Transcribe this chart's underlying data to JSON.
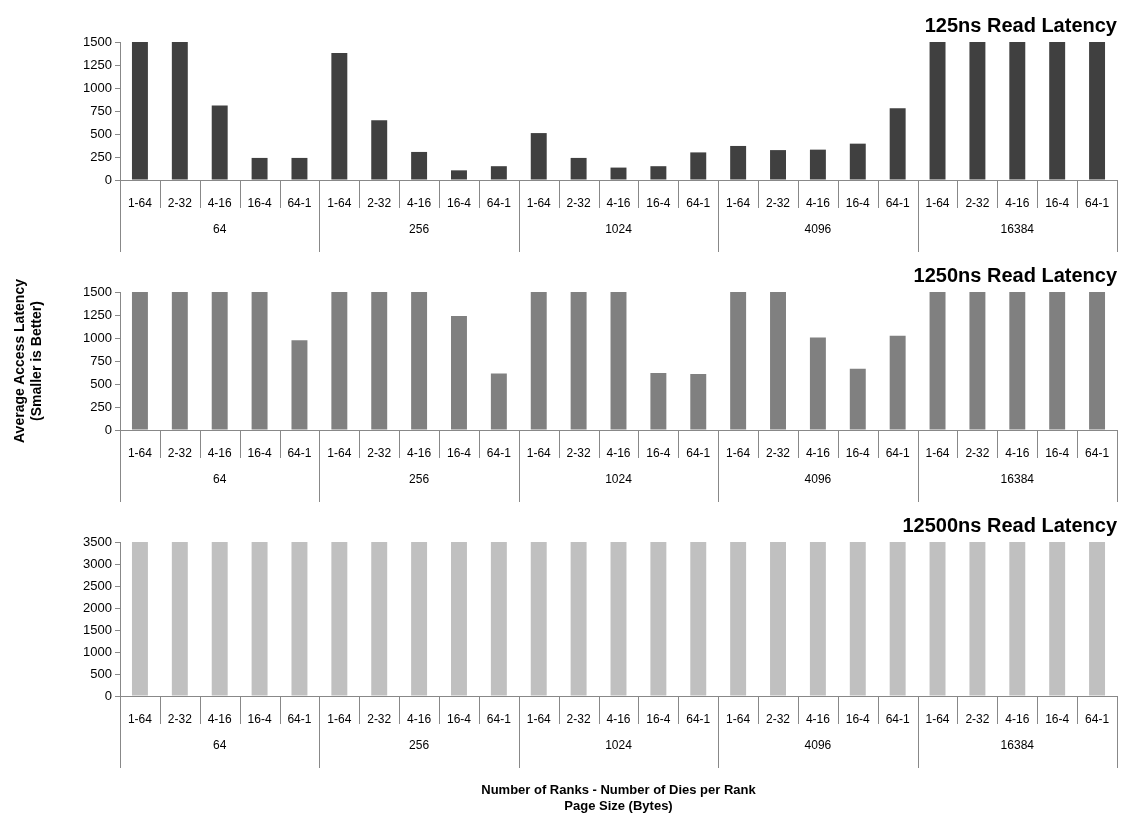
{
  "chart_data": [
    {
      "type": "bar",
      "title": "125ns Read Latency",
      "categories": [
        "1-64",
        "2-32",
        "4-16",
        "16-4",
        "64-1",
        "1-64",
        "2-32",
        "4-16",
        "16-4",
        "64-1",
        "1-64",
        "2-32",
        "4-16",
        "16-4",
        "64-1",
        "1-64",
        "2-32",
        "4-16",
        "16-4",
        "64-1",
        "1-64",
        "2-32",
        "4-16",
        "16-4",
        "64-1"
      ],
      "values": [
        1500,
        1500,
        810,
        240,
        240,
        1380,
        650,
        305,
        105,
        150,
        510,
        240,
        135,
        150,
        300,
        370,
        325,
        330,
        395,
        780,
        1500,
        1500,
        1500,
        1500,
        1500
      ],
      "color": "#404040",
      "ylim": [
        0,
        1500
      ],
      "yticks": [
        0,
        250,
        500,
        750,
        1000,
        1250,
        1500
      ],
      "annotations": [
        "64",
        "256",
        "1024",
        "4096",
        "16384"
      ]
    },
    {
      "type": "bar",
      "title": "1250ns Read Latency",
      "ylabel": "Average Access Latency\n(Smaller is Better)",
      "categories": [
        "1-64",
        "2-32",
        "4-16",
        "16-4",
        "64-1",
        "1-64",
        "2-32",
        "4-16",
        "16-4",
        "64-1",
        "1-64",
        "2-32",
        "4-16",
        "16-4",
        "64-1",
        "1-64",
        "2-32",
        "4-16",
        "16-4",
        "64-1",
        "1-64",
        "2-32",
        "4-16",
        "16-4",
        "64-1"
      ],
      "values": [
        1500,
        1500,
        1500,
        1500,
        975,
        1500,
        1500,
        1500,
        1240,
        615,
        1500,
        1500,
        1500,
        620,
        610,
        1500,
        1500,
        1005,
        665,
        1025,
        1500,
        1500,
        1500,
        1500,
        1500
      ],
      "color": "#808080",
      "ylim": [
        0,
        1500
      ],
      "yticks": [
        0,
        250,
        500,
        750,
        1000,
        1250,
        1500
      ],
      "annotations": [
        "64",
        "256",
        "1024",
        "4096",
        "16384"
      ]
    },
    {
      "type": "bar",
      "title": "12500ns Read Latency",
      "xlabel": "Number of Ranks - Number of Dies per Rank\nPage Size (Bytes)",
      "categories": [
        "1-64",
        "2-32",
        "4-16",
        "16-4",
        "64-1",
        "1-64",
        "2-32",
        "4-16",
        "16-4",
        "64-1",
        "1-64",
        "2-32",
        "4-16",
        "16-4",
        "64-1",
        "1-64",
        "2-32",
        "4-16",
        "16-4",
        "64-1",
        "1-64",
        "2-32",
        "4-16",
        "16-4",
        "64-1"
      ],
      "values": [
        3500,
        3500,
        3500,
        3500,
        3500,
        3500,
        3500,
        3500,
        3500,
        3500,
        3500,
        3500,
        3500,
        3500,
        3500,
        3500,
        3500,
        3500,
        3500,
        3500,
        3500,
        3500,
        3500,
        3500,
        3500
      ],
      "color": "#c0c0c0",
      "ylim": [
        0,
        3500
      ],
      "yticks": [
        0,
        500,
        1000,
        1500,
        2000,
        2500,
        3000,
        3500
      ],
      "annotations": [
        "64",
        "256",
        "1024",
        "4096",
        "16384"
      ]
    }
  ]
}
